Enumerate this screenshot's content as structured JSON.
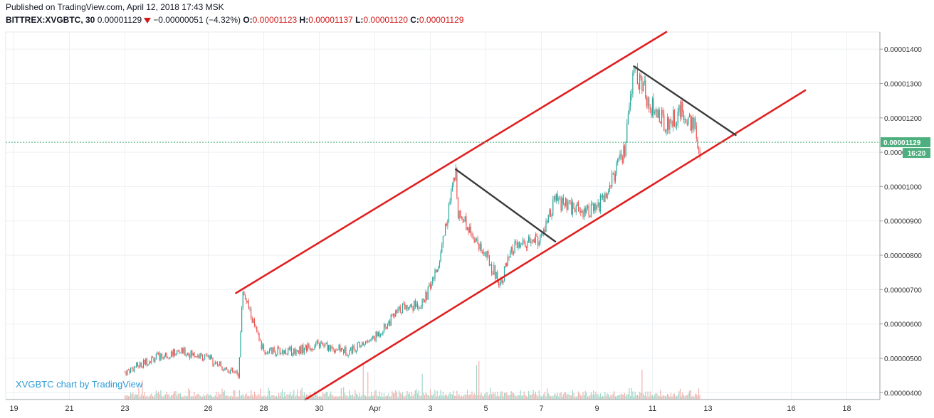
{
  "header": {
    "published": "Published on TradingView.com, April 12, 2018 17:43 MSK",
    "symbol": "BITTREX:XVGBTC, 30",
    "last": "0.00001129",
    "change": "−0.00000051 (−4.32%)",
    "o_label": "O:",
    "o_value": "0.00001123",
    "h_label": "H:",
    "h_value": "0.00001137",
    "l_label": "L:",
    "l_value": "0.00001120",
    "c_label": "C:",
    "c_value": "0.00001129"
  },
  "watermark": "XVGBTC chart by TradingView",
  "price_tag": {
    "price": "0.00001129",
    "countdown": "16:20"
  },
  "colors": {
    "up": "#26a69a",
    "down": "#ef5350",
    "channel": "#e02020",
    "trend": "#3a3a3a",
    "grid": "#edf0f3",
    "last_price": "#4caf7d"
  },
  "chart_data": {
    "type": "candlestick",
    "x_ticks": [
      "19",
      "21",
      "23",
      "26",
      "28",
      "30",
      "Apr",
      "3",
      "5",
      "7",
      "9",
      "11",
      "13",
      "16",
      "18"
    ],
    "y_ticks": [
      "0.00001400",
      "0.00001300",
      "0.00001200",
      "0.00001100",
      "0.00001000",
      "0.00000900",
      "0.00000800",
      "0.00000700",
      "0.00000600",
      "0.00000500",
      "0.00000400"
    ],
    "ylim": [
      3.8e-06,
      1.45e-05
    ],
    "x_range_days": [
      "2018-03-19",
      "2018-04-19"
    ],
    "price_path": [
      [
        "2018-03-23",
        4.6e-06
      ],
      [
        "2018-03-24",
        5e-06
      ],
      [
        "2018-03-25",
        5.2e-06
      ],
      [
        "2018-03-26",
        5e-06
      ],
      [
        "2018-03-27 02:00",
        4.5e-06
      ],
      [
        "2018-03-27 06:00",
        7e-06
      ],
      [
        "2018-03-27 18:00",
        5.7e-06
      ],
      [
        "2018-03-28",
        5.2e-06
      ],
      [
        "2018-03-29",
        5.2e-06
      ],
      [
        "2018-03-30",
        5.4e-06
      ],
      [
        "2018-03-31",
        5.2e-06
      ],
      [
        "2018-04-01",
        5.6e-06
      ],
      [
        "2018-04-02",
        6.5e-06
      ],
      [
        "2018-04-02 18:00",
        6.6e-06
      ],
      [
        "2018-04-03 06:00",
        7.6e-06
      ],
      [
        "2018-04-03 22:00",
        1.04e-05
      ],
      [
        "2018-04-04",
        9.3e-06
      ],
      [
        "2018-04-05",
        8e-06
      ],
      [
        "2018-04-05 12:00",
        7.2e-06
      ],
      [
        "2018-04-06",
        8.2e-06
      ],
      [
        "2018-04-07",
        8.5e-06
      ],
      [
        "2018-04-07 12:00",
        9.6e-06
      ],
      [
        "2018-04-08",
        9.4e-06
      ],
      [
        "2018-04-09",
        9.3e-06
      ],
      [
        "2018-04-10",
        1.1e-05
      ],
      [
        "2018-04-10 08:00",
        1.34e-05
      ],
      [
        "2018-04-11",
        1.23e-05
      ],
      [
        "2018-04-11 12:00",
        1.18e-05
      ],
      [
        "2018-04-12",
        1.22e-05
      ],
      [
        "2018-04-12 12:00",
        1.18e-05
      ],
      [
        "2018-04-12 17:30",
        1.05e-05
      ],
      [
        "2018-04-12 17:43",
        1.129e-05
      ]
    ],
    "drawings": {
      "channel_upper": [
        [
          "2018-03-27",
          6.9e-06
        ],
        [
          "2018-04-11 12:00",
          1.45e-05
        ]
      ],
      "channel_lower": [
        [
          "2018-03-29 12:00",
          3.8e-06
        ],
        [
          "2018-04-16 12:00",
          1.28e-05
        ]
      ],
      "trend_1": [
        [
          "2018-04-03 22:00",
          1.05e-05
        ],
        [
          "2018-04-07 12:00",
          8.4e-06
        ]
      ],
      "trend_2": [
        [
          "2018-04-10 08:00",
          1.35e-05
        ],
        [
          "2018-04-14",
          1.15e-05
        ]
      ]
    },
    "last_price": 1.129e-05,
    "grid": true
  }
}
